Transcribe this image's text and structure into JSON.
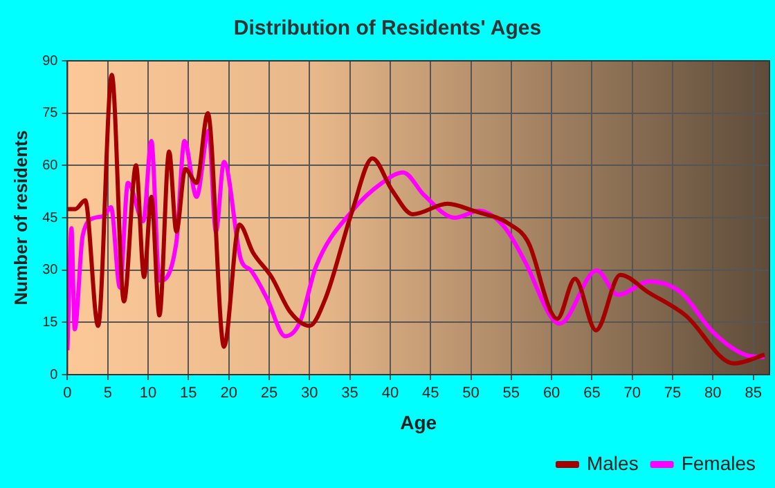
{
  "chart_data": {
    "type": "line",
    "title": "Distribution of Residents' Ages",
    "xlabel": "Age",
    "ylabel": "Number of residents",
    "xlim": [
      0,
      87
    ],
    "ylim": [
      0,
      90
    ],
    "xticks": [
      0,
      5,
      10,
      15,
      20,
      25,
      30,
      35,
      40,
      45,
      50,
      55,
      60,
      65,
      70,
      75,
      80,
      85
    ],
    "yticks": [
      0,
      15,
      30,
      45,
      60,
      75,
      90
    ],
    "grid": true,
    "legend": "bottom right",
    "marker": "none",
    "line_style": "solid",
    "series": [
      {
        "name": "Males",
        "color": "#a50000",
        "x": [
          0,
          1,
          2.2,
          3.8,
          5.5,
          7,
          8.5,
          9.5,
          10.4,
          11.4,
          12.6,
          13.5,
          14.6,
          16,
          17.4,
          19.4,
          21.3,
          23,
          25.3,
          27.6,
          30,
          32,
          35.3,
          37.8,
          40.2,
          42.8,
          47.1,
          50.3,
          54.9,
          57.2,
          59.8,
          60.7,
          62.9,
          65.5,
          68.5,
          72,
          76.6,
          82.6,
          86.4
        ],
        "values": [
          47.5,
          47.5,
          50,
          14,
          86,
          21,
          60,
          28,
          51,
          17,
          64,
          41,
          59,
          55,
          75,
          8,
          43,
          35,
          28,
          18,
          14,
          22,
          47,
          62,
          53,
          46,
          49,
          47,
          43,
          37.5,
          18.6,
          16,
          27.5,
          12.7,
          28.6,
          23.6,
          17,
          3.2,
          5.7
        ]
      },
      {
        "name": "Females",
        "color": "#ff00ff",
        "x": [
          0,
          0.5,
          0.9,
          1.9,
          3.4,
          4.5,
          5.4,
          6.5,
          7.5,
          9.4,
          10.4,
          11.4,
          13.5,
          14.5,
          16,
          17.5,
          18.4,
          19.4,
          21.5,
          22.7,
          24.7,
          27,
          28.8,
          30.8,
          35.3,
          39,
          41.6,
          44.2,
          48,
          51,
          53.9,
          56.8,
          59.8,
          61,
          65.6,
          68.2,
          72.2,
          76,
          80,
          84,
          86.4
        ],
        "values": [
          7,
          42,
          13,
          40,
          45,
          45.5,
          48,
          25,
          55,
          44,
          67,
          27,
          38,
          67,
          51,
          70,
          41,
          61,
          33,
          30,
          22,
          11,
          15,
          31,
          47,
          55,
          58,
          51.5,
          45,
          47,
          43,
          32,
          17,
          14.6,
          29.9,
          22.9,
          26.7,
          23.6,
          12.2,
          5.7,
          5
        ]
      }
    ]
  }
}
